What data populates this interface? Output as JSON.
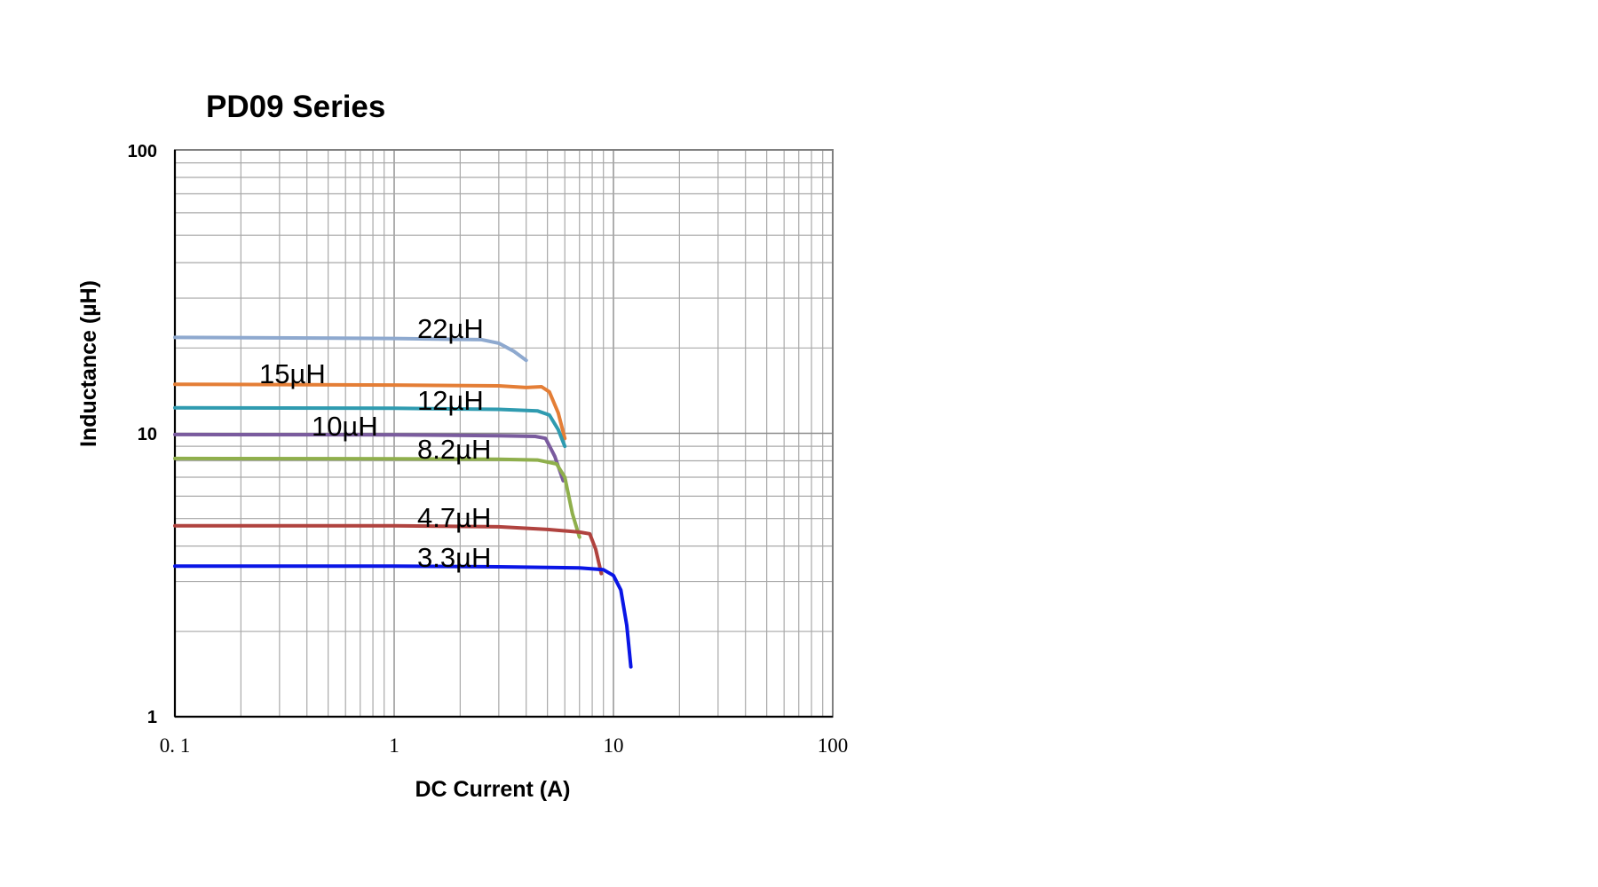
{
  "chart_data": {
    "type": "line",
    "title": "PD09 Series",
    "xlabel": "DC Current (A)",
    "ylabel": "Inductance (µH)",
    "x_scale": "log",
    "y_scale": "log",
    "xlim": [
      0.1,
      100
    ],
    "ylim": [
      1,
      100
    ],
    "x_ticks": [
      "0. 1",
      "1",
      "10",
      "100"
    ],
    "y_ticks": [
      "1",
      "10",
      "100"
    ],
    "grid": true,
    "series": [
      {
        "name": "22µH",
        "color": "#8ea9cf",
        "label": "22µH",
        "points": [
          [
            0.1,
            21.8
          ],
          [
            1.0,
            21.6
          ],
          [
            2.5,
            21.4
          ],
          [
            3.0,
            20.8
          ],
          [
            3.5,
            19.5
          ],
          [
            4.0,
            18.1
          ]
        ]
      },
      {
        "name": "15µH",
        "color": "#e47e36",
        "label": "15µH",
        "points": [
          [
            0.1,
            14.9
          ],
          [
            1.0,
            14.8
          ],
          [
            3.0,
            14.7
          ],
          [
            4.0,
            14.5
          ],
          [
            4.7,
            14.6
          ],
          [
            5.1,
            14.0
          ],
          [
            5.6,
            11.8
          ],
          [
            6.0,
            9.6
          ]
        ]
      },
      {
        "name": "12µH",
        "color": "#2f9bb0",
        "label": "12µH",
        "points": [
          [
            0.1,
            12.3
          ],
          [
            1.0,
            12.25
          ],
          [
            3.0,
            12.15
          ],
          [
            4.5,
            12.0
          ],
          [
            5.1,
            11.6
          ],
          [
            5.6,
            10.3
          ],
          [
            6.0,
            9.0
          ]
        ]
      },
      {
        "name": "10µH",
        "color": "#7a5b9e",
        "label": "10µH",
        "points": [
          [
            0.1,
            9.9
          ],
          [
            1.0,
            9.88
          ],
          [
            3.0,
            9.8
          ],
          [
            4.4,
            9.75
          ],
          [
            4.9,
            9.6
          ],
          [
            5.4,
            8.3
          ],
          [
            5.9,
            6.8
          ]
        ]
      },
      {
        "name": "8.2µH",
        "color": "#8faf4c",
        "label": "8.2µH",
        "points": [
          [
            0.1,
            8.15
          ],
          [
            1.0,
            8.13
          ],
          [
            3.0,
            8.1
          ],
          [
            4.5,
            8.05
          ],
          [
            5.5,
            7.8
          ],
          [
            6.0,
            7.0
          ],
          [
            6.5,
            5.2
          ],
          [
            7.0,
            4.3
          ]
        ]
      },
      {
        "name": "4.7µH",
        "color": "#b0433f",
        "label": "4.7µH",
        "points": [
          [
            0.1,
            4.72
          ],
          [
            1.0,
            4.72
          ],
          [
            3.0,
            4.68
          ],
          [
            5.0,
            4.58
          ],
          [
            7.0,
            4.48
          ],
          [
            7.8,
            4.42
          ],
          [
            8.3,
            3.9
          ],
          [
            8.8,
            3.2
          ]
        ]
      },
      {
        "name": "3.3µH",
        "color": "#0a16e6",
        "label": "3.3µH",
        "points": [
          [
            0.1,
            3.4
          ],
          [
            1.0,
            3.4
          ],
          [
            3.0,
            3.38
          ],
          [
            7.0,
            3.35
          ],
          [
            9.0,
            3.3
          ],
          [
            10.0,
            3.15
          ],
          [
            10.8,
            2.8
          ],
          [
            11.5,
            2.1
          ],
          [
            12.0,
            1.5
          ]
        ]
      }
    ]
  }
}
